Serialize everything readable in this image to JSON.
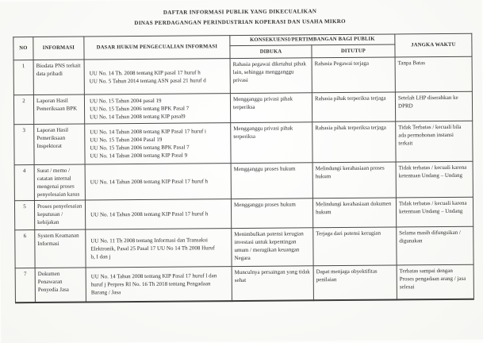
{
  "page": {
    "title_line1": "DAFTAR INFORMASI PUBLIK YANG DIKECUALIKAN",
    "title_line2": "DINAS PERDAGANGAN PERINDUSTRIAN KOPERASI DAN USAHA MIKRO"
  },
  "table": {
    "headers": {
      "no": "NO",
      "informasi": "INFORMASI",
      "dasar_hukum": "DASAR HUKUM PENGECUALIAN INFORMASI",
      "konsekuensi": "KONSEKUENSI/PERTIMBANGAN BAGI PUBLIK",
      "dibuka": "DIBUKA",
      "ditutup": "DITUTUP",
      "jangka_waktu": "JANGKA WAKTU"
    },
    "rows": [
      {
        "no": "1",
        "informasi": "Biodata PNS terkait data pribadi",
        "dasar_hukum": [
          "UU No. 14 Th. 2008 tentang KIP pasal 17 huruf h",
          "UU No. 5 Tahun 2014 tentang ASN pasal 21 huruf d"
        ],
        "dibuka": "Rahasia pegawai diketahui pihak lain, sehingga mengganggu privasi",
        "ditutup": "Rahasia Pegawai terjaga",
        "jangka_waktu": "Tanpa Batas"
      },
      {
        "no": "2",
        "informasi": "Laporan Hasil Pemeriksaan BPK",
        "dasar_hukum": [
          "UU No. 15 Tahun 2004 pasal 19",
          "UU No. 15 Tahun 2006 tentang BPK Pasal 7",
          "UU No. 14 Tahun 2008 tentang KIP pasal9"
        ],
        "dibuka": "Mengganggu privasi pihak terperiksa",
        "ditutup": "Rahasia pihak terperiksa terjaga",
        "jangka_waktu": "Setelah  LHP diserahkan ke DPRD"
      },
      {
        "no": "3",
        "informasi": "Laporan Hasil Pemeriksaan Inspektorat",
        "dasar_hukum": [
          "UU No. 14 Tahun 2008 tentang KIP Pasal 17 huruf i",
          "UU No. 15 Tahun 2004 Pasal 19",
          "UU No. 15 Tahun 2006 tentang BPK Pasal 7",
          "UU No. 14 Tahun 2008 tentang KIP Pasal 9"
        ],
        "dibuka": "Mengganggu privasi pihak terperiksa",
        "ditutup": "Rahasia pihak terperiksa terjaga",
        "jangka_waktu": "Tidak Terbatas / kecuali bila ada permohonan instansi terkait"
      },
      {
        "no": "4",
        "informasi": "Surat / memo / catatan internal mengenai proses penyelesaian kasus",
        "dasar_hukum": [
          "UU No. 14 Tahun 2008 tentang KIP Pasal 17 huruf h"
        ],
        "dibuka": "Mengganggu proses hukum",
        "ditutup": "Melindungi kerahasiaan proses hukum",
        "jangka_waktu": "Tidak terbatas / kecuali karena ketentuan Undang – Undang"
      },
      {
        "no": "5",
        "informasi": "Proses penyelesaian keputusan / kebijakan",
        "dasar_hukum": [
          "UU No. 14 Tahun 2008 tentang KIP Pasal 17 huruf h"
        ],
        "dibuka": "Mengganggu proses hukum",
        "ditutup": "Melindungi kerahasiaan dokumen hukum",
        "jangka_waktu": "Tidak terbatas / kecuali karena ketentuan Undang – Undang"
      },
      {
        "no": "6",
        "informasi": "System Keamanan Informasi",
        "dasar_hukum": [
          "UU No. 11 Th 2008 tentang Informasi dan Transaksi Elektronik, Pasal 25 Pasal 17      UU No 14 Th 2008 Huruf b, I dan j"
        ],
        "dibuka": "Menimbulkan potensi kerugian investasi untuk kepentingan umum / merugikan keuangan Negara",
        "ditutup": "Terjaga dari potensi kerugian",
        "jangka_waktu": "Selama masih difungsikan / digunakan"
      },
      {
        "no": "7",
        "informasi": "Dokumen Penawaran Penyedia Jasa",
        "dasar_hukum": [
          "UU No. 14 Tahun 2008 tentang KIP Pasal 17 huruf  l dan huruf  j Perpres RI No. 16 Th 2018 tentang Pengadaan Barang / Jasa"
        ],
        "dibuka": "Munculnya persaingan yang tidak sehat",
        "ditutup": "Dapat menjaga obyektifitas penilaian",
        "jangka_waktu": "Terbatas sampai dengan Proses pengadaan arang / jasa selesai"
      }
    ]
  }
}
